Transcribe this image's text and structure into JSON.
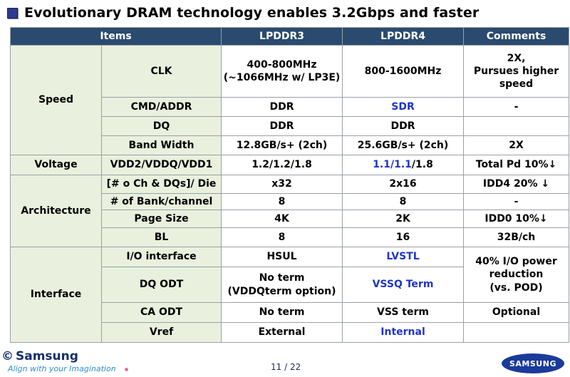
{
  "title": "Evolutionary DRAM technology enables 3.2Gbps and faster",
  "table": {
    "headers": [
      "Items",
      "LPDDR3",
      "LPDDR4",
      "Comments"
    ],
    "speed": {
      "category": "Speed",
      "clk": {
        "item": "CLK",
        "lpddr3_line1": "400-800MHz",
        "lpddr3_line2": "(~1066MHz w/ LP3E)",
        "lpddr4": "800-1600MHz",
        "comment_line1": "2X,",
        "comment_line2": "Pursues higher",
        "comment_line3": "speed"
      },
      "cmd": {
        "item": "CMD/ADDR",
        "lpddr3": "DDR",
        "lpddr4": "SDR",
        "comment": "-"
      },
      "dq": {
        "item": "DQ",
        "lpddr3": "DDR",
        "lpddr4": "DDR",
        "comment": ""
      },
      "bw": {
        "item": "Band Width",
        "lpddr3": "12.8GB/s+ (2ch)",
        "lpddr4": "25.6GB/s+ (2ch)",
        "comment": "2X"
      }
    },
    "voltage": {
      "category": "Voltage",
      "item": "VDD2/VDDQ/VDD1",
      "lpddr3": "1.2/1.2/1.8",
      "lpddr4_part1": "1.1/1.1",
      "lpddr4_part2": "/1.8",
      "comment": "Total Pd 10%↓"
    },
    "architecture": {
      "category": "Architecture",
      "chdq": {
        "item": "[# o Ch  & DQs]/ Die",
        "lpddr3": "x32",
        "lpddr4": "2x16",
        "comment": "IDD4 20% ↓"
      },
      "bank": {
        "item": "# of Bank/channel",
        "lpddr3": "8",
        "lpddr4": "8",
        "comment": "-"
      },
      "page": {
        "item": "Page Size",
        "lpddr3": "4K",
        "lpddr4": "2K",
        "comment": "IDD0 10%↓"
      },
      "bl": {
        "item": "BL",
        "lpddr3": "8",
        "lpddr4": "16",
        "comment": "32B/ch"
      }
    },
    "interface": {
      "category": "Interface",
      "io": {
        "item": "I/O interface",
        "lpddr3": "HSUL",
        "lpddr4": "LVSTL",
        "comment_line1": "40% I/O power",
        "comment_line2": "reduction",
        "comment_line3": "(vs. POD)"
      },
      "dqodt": {
        "item": "DQ ODT",
        "lpddr3_line1": "No term",
        "lpddr3_line2": "(VDDQterm option)",
        "lpddr4": "VSSQ Term"
      },
      "caodt": {
        "item": "CA ODT",
        "lpddr3": "No term",
        "lpddr4": "VSS term",
        "comment": "Optional"
      },
      "vref": {
        "item": "Vref",
        "lpddr3": "External",
        "lpddr4": "Internal",
        "comment": ""
      }
    }
  },
  "footer": {
    "copyright_symbol": "©",
    "company": "Samsung",
    "tagline": "Align with your Imagination",
    "page": "11 / 22",
    "logo": "SAMSUNG"
  },
  "colors": {
    "header_bg": "#2b4a6f",
    "category_bg": "#e9f1de",
    "highlight_text": "#1f35c8"
  }
}
